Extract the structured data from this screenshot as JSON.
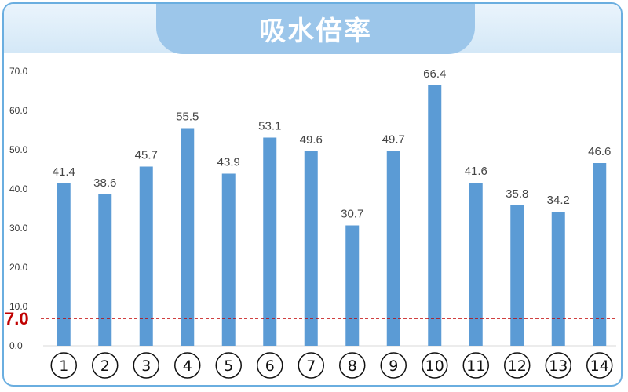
{
  "title": "吸水倍率",
  "chart_data": {
    "type": "bar",
    "title": "吸水倍率",
    "categories": [
      "①",
      "②",
      "③",
      "④",
      "⑤",
      "⑥",
      "⑦",
      "⑧",
      "⑨",
      "⑩",
      "⑪",
      "⑫",
      "⑬",
      "⑭"
    ],
    "values": [
      41.4,
      38.6,
      45.7,
      55.5,
      43.9,
      53.1,
      49.6,
      30.7,
      49.7,
      66.4,
      41.6,
      35.8,
      34.2,
      46.6
    ],
    "value_labels": [
      "41.4",
      "38.6",
      "45.7",
      "55.5",
      "43.9",
      "53.1",
      "49.6",
      "30.7",
      "49.7",
      "66.4",
      "41.6",
      "35.8",
      "34.2",
      "46.6"
    ],
    "yticks": [
      "0.0",
      "10.0",
      "20.0",
      "30.0",
      "40.0",
      "50.0",
      "60.0",
      "70.0"
    ],
    "ylim": [
      0,
      70
    ],
    "grid": false,
    "bar_color": "#5b9bd5",
    "reference_line": {
      "value": 7.0,
      "label": "7.0",
      "color": "#c00000",
      "style": "dashed"
    }
  }
}
